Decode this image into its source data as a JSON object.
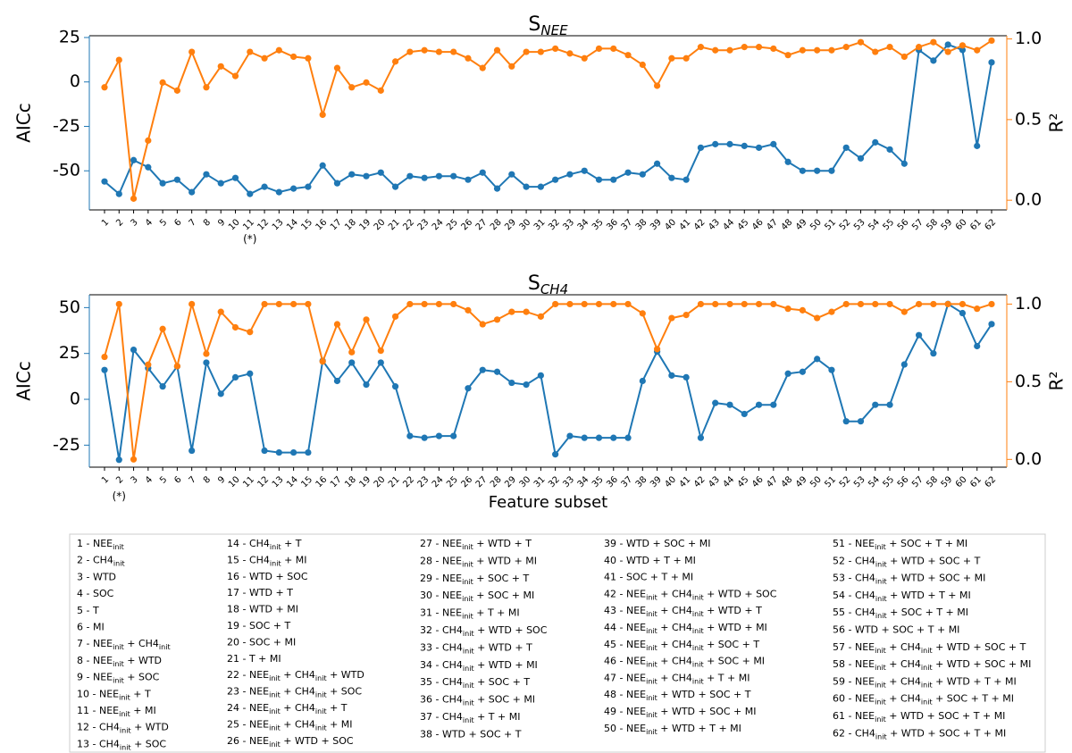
{
  "chart_data": [
    {
      "type": "line",
      "title": "S",
      "title_sub": "NEE",
      "ylabel": "AICc",
      "y2label": "R²",
      "categories": [
        "1",
        "2",
        "3",
        "4",
        "5",
        "6",
        "7",
        "8",
        "9",
        "10",
        "11",
        "12",
        "13",
        "14",
        "15",
        "16",
        "17",
        "18",
        "19",
        "20",
        "21",
        "22",
        "23",
        "24",
        "25",
        "26",
        "27",
        "28",
        "29",
        "30",
        "31",
        "32",
        "33",
        "34",
        "35",
        "36",
        "37",
        "38",
        "39",
        "40",
        "41",
        "42",
        "43",
        "44",
        "45",
        "46",
        "47",
        "48",
        "49",
        "50",
        "51",
        "52",
        "53",
        "54",
        "55",
        "56",
        "57",
        "58",
        "59",
        "60",
        "61",
        "62"
      ],
      "annotation": {
        "text": "(*)",
        "category": "11",
        "color": "#e8302a"
      },
      "ylim": [
        -72,
        26
      ],
      "yticks": [
        25,
        0,
        -25,
        -50
      ],
      "y2lim": [
        -0.06,
        1.02
      ],
      "y2ticks": [
        {
          "value": 0,
          "label": "0.0"
        },
        0.5,
        {
          "value": 1,
          "label": "1.0"
        }
      ],
      "series": [
        {
          "color": "#1f77b4",
          "axis": "y",
          "values": [
            -56,
            -63,
            -44,
            -48,
            -57,
            -55,
            -62,
            -52,
            -57,
            -54,
            -63,
            -59,
            -62,
            -60,
            -59,
            -47,
            -57,
            -52,
            -53,
            -51,
            -59,
            -53,
            -54,
            -53,
            -53,
            -55,
            -51,
            -60,
            -52,
            -59,
            -59,
            -55,
            -52,
            -50,
            -55,
            -55,
            -51,
            -52,
            -46,
            -54,
            -55,
            -37,
            -35,
            -35,
            -36,
            -37,
            -35,
            -45,
            -50,
            -50,
            -50,
            -37,
            -43,
            -34,
            -38,
            -46,
            18,
            12,
            21,
            18,
            -36,
            11
          ]
        },
        {
          "color": "#ff7f0e",
          "axis": "y2",
          "values": [
            0.7,
            0.87,
            0.01,
            0.37,
            0.73,
            0.68,
            0.92,
            0.7,
            0.83,
            0.77,
            0.92,
            0.88,
            0.93,
            0.89,
            0.88,
            0.53,
            0.82,
            0.7,
            0.73,
            0.68,
            0.86,
            0.92,
            0.93,
            0.92,
            0.92,
            0.88,
            0.82,
            0.93,
            0.83,
            0.92,
            0.92,
            0.94,
            0.91,
            0.88,
            0.94,
            0.94,
            0.9,
            0.84,
            0.71,
            0.88,
            0.88,
            0.95,
            0.93,
            0.93,
            0.95,
            0.95,
            0.94,
            0.9,
            0.93,
            0.93,
            0.93,
            0.95,
            0.98,
            0.92,
            0.95,
            0.89,
            0.95,
            0.98,
            0.92,
            0.96,
            0.93,
            0.99
          ]
        }
      ]
    },
    {
      "type": "line",
      "title": "S",
      "title_sub": "CH4",
      "ylabel": "AICc",
      "y2label": "R²",
      "xlabel": "Feature subset",
      "categories": [
        "1",
        "2",
        "3",
        "4",
        "5",
        "6",
        "7",
        "8",
        "9",
        "10",
        "11",
        "12",
        "13",
        "14",
        "15",
        "16",
        "17",
        "18",
        "19",
        "20",
        "21",
        "22",
        "23",
        "24",
        "25",
        "26",
        "27",
        "28",
        "29",
        "30",
        "31",
        "32",
        "33",
        "34",
        "35",
        "36",
        "37",
        "38",
        "39",
        "40",
        "41",
        "42",
        "43",
        "44",
        "45",
        "46",
        "47",
        "48",
        "49",
        "50",
        "51",
        "52",
        "53",
        "54",
        "55",
        "56",
        "57",
        "58",
        "59",
        "60",
        "61",
        "62"
      ],
      "annotation": {
        "text": "(*)",
        "category": "2",
        "color": "#e8302a"
      },
      "ylim": [
        -37,
        57
      ],
      "yticks": [
        50,
        25,
        0,
        -25
      ],
      "y2lim": [
        -0.05,
        1.06
      ],
      "y2ticks": [
        {
          "value": 0,
          "label": "0.0"
        },
        0.5,
        {
          "value": 1,
          "label": "1.0"
        }
      ],
      "series": [
        {
          "color": "#1f77b4",
          "axis": "y",
          "values": [
            16,
            -33,
            27,
            17,
            7,
            18,
            -28,
            20,
            3,
            12,
            14,
            -28,
            -29,
            -29,
            -29,
            21,
            10,
            20,
            8,
            20,
            7,
            -20,
            -21,
            -20,
            -20,
            6,
            16,
            15,
            9,
            8,
            13,
            -30,
            -20,
            -21,
            -21,
            -21,
            -21,
            10,
            26,
            13,
            12,
            -21,
            -2,
            -3,
            -8,
            -3,
            -3,
            14,
            15,
            22,
            16,
            -12,
            -12,
            -3,
            -3,
            19,
            35,
            25,
            52,
            47,
            29,
            41
          ]
        },
        {
          "color": "#ff7f0e",
          "axis": "y2",
          "values": [
            0.66,
            1.0,
            0.0,
            0.61,
            0.84,
            0.6,
            1.0,
            0.68,
            0.95,
            0.85,
            0.82,
            1.0,
            1.0,
            1.0,
            1.0,
            0.63,
            0.87,
            0.69,
            0.9,
            0.7,
            0.92,
            1.0,
            1.0,
            1.0,
            1.0,
            0.96,
            0.87,
            0.9,
            0.95,
            0.95,
            0.92,
            1.0,
            1.0,
            1.0,
            1.0,
            1.0,
            1.0,
            0.94,
            0.71,
            0.91,
            0.93,
            1.0,
            1.0,
            1.0,
            1.0,
            1.0,
            1.0,
            0.97,
            0.96,
            0.91,
            0.95,
            1.0,
            1.0,
            1.0,
            1.0,
            0.95,
            1.0,
            1.0,
            1.0,
            1.0,
            0.97,
            1.0
          ]
        }
      ]
    }
  ],
  "legend_table": {
    "entries": [
      [
        "1 - NEE",
        "init"
      ],
      [
        "2 - CH4",
        "init"
      ],
      [
        "3 - WTD"
      ],
      [
        "4 - SOC"
      ],
      [
        "5 - T"
      ],
      [
        "6 - MI"
      ],
      [
        "7 - NEE",
        "init",
        " + CH4",
        "init"
      ],
      [
        "8 - NEE",
        "init",
        " + WTD"
      ],
      [
        "9 - NEE",
        "init",
        " + SOC"
      ],
      [
        "10 - NEE",
        "init",
        " + T"
      ],
      [
        "11 - NEE",
        "init",
        " + MI"
      ],
      [
        "12 - CH4",
        "init",
        " + WTD"
      ],
      [
        "13 - CH4",
        "init",
        " + SOC"
      ],
      [
        "14 - CH4",
        "init",
        " + T"
      ],
      [
        "15 - CH4",
        "init",
        " + MI"
      ],
      [
        "16 - WTD + SOC"
      ],
      [
        "17 - WTD + T"
      ],
      [
        "18 - WTD + MI"
      ],
      [
        "19 - SOC + T"
      ],
      [
        "20 - SOC + MI"
      ],
      [
        "21 - T + MI"
      ],
      [
        "22 - NEE",
        "init",
        " + CH4",
        "init",
        " + WTD"
      ],
      [
        "23 - NEE",
        "init",
        " + CH4",
        "init",
        " + SOC"
      ],
      [
        "24 - NEE",
        "init",
        " + CH4",
        "init",
        " + T"
      ],
      [
        "25 - NEE",
        "init",
        " + CH4",
        "init",
        " + MI"
      ],
      [
        "26 - NEE",
        "init",
        " + WTD + SOC"
      ],
      [
        "27 - NEE",
        "init",
        " + WTD + T"
      ],
      [
        "28 - NEE",
        "init",
        " + WTD + MI"
      ],
      [
        "29 - NEE",
        "init",
        " + SOC + T"
      ],
      [
        "30 - NEE",
        "init",
        " + SOC + MI"
      ],
      [
        "31 - NEE",
        "init",
        " + T + MI"
      ],
      [
        "32 - CH4",
        "init",
        " + WTD + SOC"
      ],
      [
        "33 - CH4",
        "init",
        " + WTD + T"
      ],
      [
        "34 - CH4",
        "init",
        " + WTD + MI"
      ],
      [
        "35 - CH4",
        "init",
        " + SOC + T"
      ],
      [
        "36 - CH4",
        "init",
        " + SOC + MI"
      ],
      [
        "37 - CH4",
        "init",
        " + T + MI"
      ],
      [
        "38 - WTD + SOC + T"
      ],
      [
        "39 - WTD + SOC + MI"
      ],
      [
        "40 - WTD + T + MI"
      ],
      [
        "41 - SOC + T + MI"
      ],
      [
        "42 - NEE",
        "init",
        " + CH4",
        "init",
        " + WTD + SOC"
      ],
      [
        "43 - NEE",
        "init",
        " + CH4",
        "init",
        " + WTD + T"
      ],
      [
        "44 - NEE",
        "init",
        " + CH4",
        "init",
        " + WTD + MI"
      ],
      [
        "45 - NEE",
        "init",
        " + CH4",
        "init",
        " + SOC + T"
      ],
      [
        "46 - NEE",
        "init",
        " + CH4",
        "init",
        " + SOC + MI"
      ],
      [
        "47 - NEE",
        "init",
        " + CH4",
        "init",
        " + T + MI"
      ],
      [
        "48 - NEE",
        "init",
        " + WTD + SOC + T"
      ],
      [
        "49 - NEE",
        "init",
        " + WTD + SOC + MI"
      ],
      [
        "50 - NEE",
        "init",
        " + WTD + T + MI"
      ],
      [
        "51 - NEE",
        "init",
        " + SOC + T + MI"
      ],
      [
        "52 - CH4",
        "init",
        " + WTD + SOC + T"
      ],
      [
        "53 - CH4",
        "init",
        " + WTD + SOC + MI"
      ],
      [
        "54 - CH4",
        "init",
        " + WTD + T + MI"
      ],
      [
        "55 - CH4",
        "init",
        " + SOC + T + MI"
      ],
      [
        "56 - WTD + SOC + T + MI"
      ],
      [
        "57 - NEE",
        "init",
        " + CH4",
        "init",
        " + WTD + SOC + T"
      ],
      [
        "58 - NEE",
        "init",
        " + CH4",
        "init",
        " + WTD + SOC + MI"
      ],
      [
        "59 - NEE",
        "init",
        " + CH4",
        "init",
        " + WTD + T + MI"
      ],
      [
        "60 - NEE",
        "init",
        " + CH4",
        "init",
        " + SOC + T + MI"
      ],
      [
        "61 - NEE",
        "init",
        " + WTD + SOC + T + MI"
      ],
      [
        "62 - CH4",
        "init",
        " + WTD + SOC + T + MI"
      ]
    ]
  }
}
